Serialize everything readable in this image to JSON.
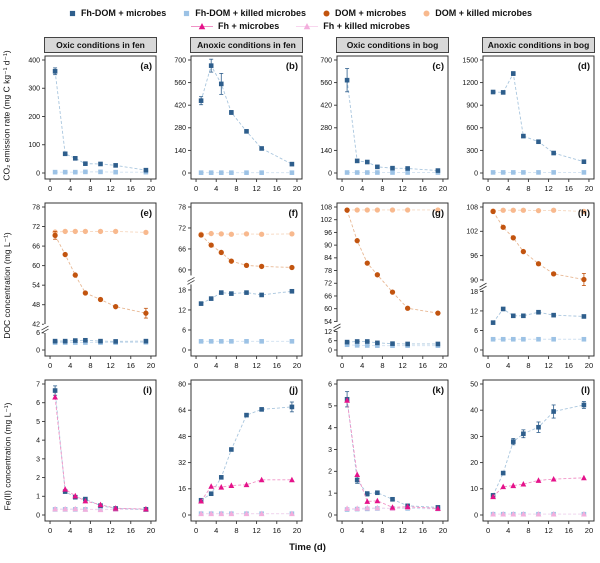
{
  "xlabel": "Time (d)",
  "ylabels": [
    "CO₂ emission rate (mg C kg⁻¹ d⁻¹)",
    "DOC concentration (mg L⁻¹)",
    "Fe(II) concentration (mg L⁻¹)"
  ],
  "columns": [
    "Oxic conditions in fen",
    "Anoxic conditions in fen",
    "Oxic conditions in bog",
    "Anoxic conditions in bog"
  ],
  "series_defs": {
    "fhdom_m": {
      "name": "Fh-DOM + microbes",
      "marker": "square",
      "color": "#2e5e8c",
      "line": "#a9c6de"
    },
    "fhdom_k": {
      "name": "Fh-DOM + killed microbes",
      "marker": "square",
      "color": "#9cc2e5",
      "line": "#cfe0f1"
    },
    "dom_m": {
      "name": "DOM + microbes",
      "marker": "circle",
      "color": "#c2540f",
      "line": "#e8b894"
    },
    "dom_k": {
      "name": "DOM + killed microbes",
      "marker": "circle",
      "color": "#f8b98e",
      "line": "#f6d8c0"
    },
    "fh_m": {
      "name": "Fh + microbes",
      "marker": "triangle",
      "color": "#e5128a",
      "line": "#f092c6"
    },
    "fh_k": {
      "name": "Fh + killed microbes",
      "marker": "triangle",
      "color": "#f3aedd",
      "line": "#f8d6ee"
    }
  },
  "legend": {
    "row1": [
      {
        "key": "fhdom_m"
      },
      {
        "key": "fhdom_k"
      },
      {
        "key": "dom_m"
      },
      {
        "key": "dom_k"
      }
    ],
    "row2": [
      {
        "key": "fh_m",
        "line": true
      },
      {
        "key": "fh_k",
        "line": true
      }
    ]
  },
  "chart_data": {
    "type": "line",
    "x": [
      1,
      3,
      5,
      7,
      10,
      13,
      19
    ],
    "xticks": [
      0,
      4,
      8,
      12,
      16,
      20
    ],
    "xrange": [
      -1,
      21
    ],
    "panels": [
      {
        "id": "a",
        "row": 0,
        "label": "(a)",
        "axis": {
          "segments": [
            {
              "min": 0,
              "max": 400,
              "ticks": [
                0,
                100,
                200,
                300,
                400
              ]
            }
          ]
        },
        "series": [
          {
            "key": "fhdom_k",
            "values": [
              3,
              3,
              3,
              4,
              4,
              3,
              3
            ]
          },
          {
            "key": "fhdom_m",
            "values": [
              360,
              68,
              52,
              33,
              32,
              27,
              10
            ],
            "err": [
              12,
              0,
              0,
              0,
              0,
              3,
              4
            ]
          }
        ]
      },
      {
        "id": "b",
        "row": 0,
        "label": "(b)",
        "axis": {
          "segments": [
            {
              "min": 0,
              "max": 700,
              "ticks": [
                0,
                140,
                280,
                420,
                560,
                700
              ]
            }
          ]
        },
        "series": [
          {
            "key": "fhdom_k",
            "values": [
              2,
              2,
              2,
              2,
              2,
              2,
              2
            ]
          },
          {
            "key": "fhdom_m",
            "values": [
              448,
              665,
              552,
              375,
              258,
              152,
              55
            ],
            "err": [
              25,
              40,
              65,
              12,
              10,
              6,
              5
            ]
          }
        ]
      },
      {
        "id": "c",
        "row": 0,
        "label": "(c)",
        "axis": {
          "segments": [
            {
              "min": 0,
              "max": 700,
              "ticks": [
                0,
                140,
                280,
                420,
                560,
                700
              ]
            }
          ]
        },
        "series": [
          {
            "key": "fhdom_k",
            "values": [
              3,
              3,
              3,
              3,
              3,
              3,
              3
            ]
          },
          {
            "key": "fhdom_m",
            "values": [
              575,
              75,
              68,
              38,
              30,
              28,
              15
            ],
            "err": [
              72,
              6,
              5,
              4,
              4,
              4,
              3
            ]
          }
        ]
      },
      {
        "id": "d",
        "row": 0,
        "label": "(d)",
        "axis": {
          "segments": [
            {
              "min": 0,
              "max": 1500,
              "ticks": [
                0,
                300,
                600,
                900,
                1200,
                1500
              ]
            }
          ]
        },
        "series": [
          {
            "key": "fhdom_k",
            "values": [
              8,
              8,
              8,
              8,
              8,
              8,
              8
            ]
          },
          {
            "key": "fhdom_m",
            "values": [
              1075,
              1070,
              1320,
              490,
              415,
              265,
              150
            ],
            "err": [
              20,
              20,
              25,
              15,
              12,
              10,
              8
            ]
          }
        ]
      },
      {
        "id": "e",
        "row": 1,
        "label": "(e)",
        "axis": {
          "gap": 0.06,
          "segments": [
            {
              "min": 0,
              "max": 6,
              "frac": 0.12,
              "ticks": [
                0,
                6
              ]
            },
            {
              "min": 42,
              "max": 78,
              "frac": 0.82,
              "ticks": [
                42,
                48,
                54,
                60,
                66,
                72,
                78
              ]
            }
          ]
        },
        "series": [
          {
            "key": "fhdom_k",
            "values": [
              2.6,
              2.6,
              2.6,
              2.6,
              2.6,
              2.6,
              2.7
            ]
          },
          {
            "key": "fhdom_m",
            "values": [
              3.1,
              3.1,
              3.3,
              3.4,
              3.1,
              3.0,
              3.1
            ]
          },
          {
            "key": "dom_k",
            "values": [
              70.3,
              70.5,
              70.5,
              70.5,
              70.5,
              70.5,
              70.2
            ]
          },
          {
            "key": "dom_m",
            "values": [
              69.3,
              63.4,
              57.1,
              51.6,
              49.6,
              47.4,
              45.4
            ],
            "err": [
              1.2,
              0,
              0,
              0,
              0,
              0,
              1.5
            ]
          }
        ]
      },
      {
        "id": "f",
        "row": 1,
        "label": "(f)",
        "axis": {
          "gap": 0.14,
          "segments": [
            {
              "min": 0,
              "max": 18,
              "frac": 0.42,
              "ticks": [
                0,
                6,
                12,
                18
              ]
            },
            {
              "min": 60,
              "max": 78,
              "frac": 0.44,
              "ticks": [
                60,
                66,
                72,
                78
              ]
            }
          ]
        },
        "series": [
          {
            "key": "fhdom_k",
            "values": [
              2.6,
              2.6,
              2.6,
              2.6,
              2.6,
              2.6,
              2.6
            ]
          },
          {
            "key": "fhdom_m",
            "values": [
              13.9,
              15.4,
              17.2,
              16.9,
              17.2,
              16.5,
              17.6
            ]
          },
          {
            "key": "dom_k",
            "values": [
              70.2,
              70.4,
              70.3,
              70.2,
              70.3,
              70.2,
              70.3
            ]
          },
          {
            "key": "dom_m",
            "values": [
              70.0,
              67.1,
              65.0,
              62.5,
              61.3,
              61.0,
              60.7
            ]
          }
        ]
      },
      {
        "id": "g",
        "row": 1,
        "label": "(g)",
        "axis": {
          "gap": 0.07,
          "segments": [
            {
              "min": 0,
              "max": 12,
              "frac": 0.13,
              "ticks": [
                0,
                6,
                12
              ]
            },
            {
              "min": 54,
              "max": 108,
              "frac": 0.8,
              "ticks": [
                54,
                60,
                66,
                72,
                78,
                84,
                90,
                96,
                102,
                108
              ]
            }
          ]
        },
        "series": [
          {
            "key": "fhdom_k",
            "values": [
              3.4,
              3.0,
              2.9,
              2.8,
              2.8,
              2.8,
              2.8
            ]
          },
          {
            "key": "fhdom_m",
            "values": [
              5.1,
              5.5,
              5.5,
              4.6,
              4.1,
              3.9,
              3.9
            ]
          },
          {
            "key": "dom_k",
            "values": [
              106.6,
              106.6,
              106.6,
              106.6,
              106.6,
              106.6,
              106.6
            ]
          },
          {
            "key": "dom_m",
            "values": [
              106.5,
              92.1,
              81.5,
              76.0,
              67.8,
              60.2,
              57.9
            ]
          }
        ]
      },
      {
        "id": "h",
        "row": 1,
        "label": "(h)",
        "axis": {
          "gap": 0.08,
          "segments": [
            {
              "min": 0,
              "max": 18,
              "frac": 0.41,
              "ticks": [
                0,
                6,
                12,
                18
              ]
            },
            {
              "min": 90,
              "max": 108,
              "frac": 0.51,
              "ticks": [
                90,
                96,
                102,
                108
              ]
            }
          ]
        },
        "series": [
          {
            "key": "fhdom_k",
            "values": [
              3.3,
              3.3,
              3.3,
              3.3,
              3.3,
              3.3,
              3.3
            ]
          },
          {
            "key": "fhdom_m",
            "values": [
              8.4,
              12.6,
              10.5,
              10.5,
              11.6,
              10.7,
              10.3
            ]
          },
          {
            "key": "dom_k",
            "values": [
              107,
              107.2,
              107.2,
              107.2,
              107.1,
              107.2,
              106.9
            ]
          },
          {
            "key": "dom_m",
            "values": [
              106.9,
              103,
              100.4,
              97,
              94,
              91.5,
              90.1
            ],
            "err": [
              0,
              0,
              0,
              0,
              0,
              0,
              1.5
            ]
          }
        ]
      },
      {
        "id": "i",
        "row": 2,
        "label": "(i)",
        "axis": {
          "segments": [
            {
              "min": 0,
              "max": 7,
              "ticks": [
                0,
                1,
                2,
                3,
                4,
                5,
                6,
                7
              ]
            }
          ]
        },
        "series": [
          {
            "key": "fhdom_k",
            "values": [
              0.3,
              0.3,
              0.3,
              0.3,
              0.3,
              0.3,
              0.3
            ]
          },
          {
            "key": "fh_k",
            "values": [
              0.32,
              0.32,
              0.33,
              0.3,
              0.28,
              0.3,
              0.3
            ]
          },
          {
            "key": "fhdom_m",
            "values": [
              6.65,
              1.25,
              0.95,
              0.85,
              0.5,
              0.35,
              0.3
            ],
            "err": [
              0.25,
              0,
              0,
              0,
              0,
              0,
              0
            ]
          },
          {
            "key": "fh_m",
            "values": [
              6.3,
              1.38,
              1.02,
              0.75,
              0.55,
              0.36,
              0.32
            ]
          }
        ]
      },
      {
        "id": "j",
        "row": 2,
        "label": "(j)",
        "axis": {
          "segments": [
            {
              "min": 0,
              "max": 80,
              "ticks": [
                0,
                16,
                32,
                48,
                64,
                80
              ]
            }
          ]
        },
        "series": [
          {
            "key": "fhdom_k",
            "values": [
              0.8,
              0.8,
              0.8,
              0.8,
              0.8,
              0.8,
              0.8
            ]
          },
          {
            "key": "fh_k",
            "values": [
              0.8,
              0.8,
              0.8,
              0.8,
              0.8,
              0.8,
              0.8
            ]
          },
          {
            "key": "fhdom_m",
            "values": [
              9,
              13,
              23,
              40,
              61,
              64.5,
              66
            ],
            "err": [
              0,
              0,
              0,
              0,
              0,
              0,
              3
            ]
          },
          {
            "key": "fh_m",
            "values": [
              8.5,
              17.5,
              17,
              18,
              18.5,
              21.5,
              21.5
            ]
          }
        ]
      },
      {
        "id": "k",
        "row": 2,
        "label": "(k)",
        "axis": {
          "segments": [
            {
              "min": 0,
              "max": 6,
              "ticks": [
                0,
                1,
                2,
                3,
                4,
                5,
                6
              ]
            }
          ]
        },
        "series": [
          {
            "key": "fhdom_k",
            "values": [
              0.25,
              0.27,
              0.28,
              0.3,
              0.3,
              0.3,
              0.28
            ]
          },
          {
            "key": "fh_k",
            "values": [
              0.3,
              0.3,
              0.32,
              0.33,
              0.3,
              0.35,
              0.3
            ]
          },
          {
            "key": "fhdom_m",
            "values": [
              5.3,
              1.6,
              0.97,
              1.02,
              0.72,
              0.42,
              0.35
            ],
            "err": [
              0.35,
              0.15,
              0.1,
              0,
              0,
              0,
              0
            ]
          },
          {
            "key": "fh_m",
            "values": [
              5.25,
              1.85,
              0.62,
              0.65,
              0.35,
              0.38,
              0.3
            ]
          }
        ]
      },
      {
        "id": "l",
        "row": 2,
        "label": "(l)",
        "axis": {
          "segments": [
            {
              "min": 0,
              "max": 50,
              "ticks": [
                0,
                10,
                20,
                30,
                40,
                50
              ]
            }
          ]
        },
        "series": [
          {
            "key": "fhdom_k",
            "values": [
              0.3,
              0.3,
              0.3,
              0.3,
              0.3,
              0.3,
              0.3
            ]
          },
          {
            "key": "fh_k",
            "values": [
              0.35,
              0.35,
              0.35,
              0.35,
              0.35,
              0.35,
              0.35
            ]
          },
          {
            "key": "fhdom_m",
            "values": [
              7.5,
              16,
              28,
              31,
              33.5,
              39.5,
              42
            ],
            "err": [
              0.5,
              0.5,
              1.2,
              1.5,
              2,
              2.5,
              1.3
            ]
          },
          {
            "key": "fh_m",
            "values": [
              7,
              10.8,
              11.2,
              11.8,
              13.2,
              13.7,
              14.2
            ]
          }
        ]
      }
    ]
  }
}
